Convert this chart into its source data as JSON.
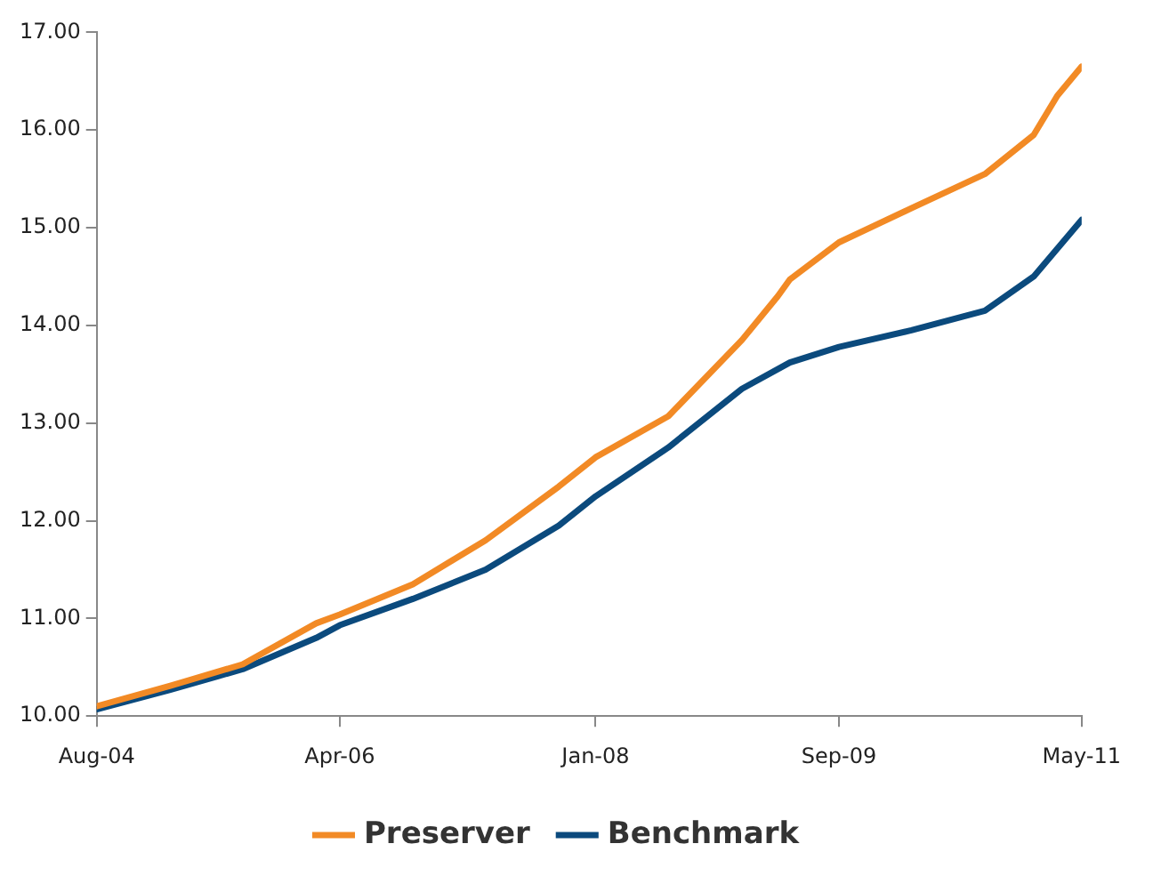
{
  "chart_data": {
    "type": "line",
    "legend": "bottom",
    "grid": false,
    "marker": "none",
    "line_style": "solid",
    "xlim": [
      "2004-08",
      "2011-05"
    ],
    "xticks": [
      {
        "value": "2004-08",
        "label": "Aug-04"
      },
      {
        "value": "2006-04",
        "label": "Apr-06"
      },
      {
        "value": "2008-01",
        "label": "Jan-08"
      },
      {
        "value": "2009-09",
        "label": "Sep-09"
      },
      {
        "value": "2011-05",
        "label": "May-11"
      }
    ],
    "ylim": [
      10,
      17
    ],
    "yticks": [
      {
        "value": 10,
        "label": "10.00"
      },
      {
        "value": 11,
        "label": "11.00"
      },
      {
        "value": 12,
        "label": "12.00"
      },
      {
        "value": 13,
        "label": "13.00"
      },
      {
        "value": 14,
        "label": "14.00"
      },
      {
        "value": 15,
        "label": "15.00"
      },
      {
        "value": 16,
        "label": "16.00"
      },
      {
        "value": 17,
        "label": "17.00"
      }
    ],
    "series": [
      {
        "name": "Preserver",
        "color": "#f28a25",
        "x": [
          "2004-08",
          "2005-02",
          "2005-08",
          "2006-02",
          "2006-04",
          "2006-10",
          "2007-04",
          "2007-10",
          "2008-01",
          "2008-07",
          "2009-01",
          "2009-04",
          "2009-05",
          "2009-09",
          "2010-03",
          "2010-09",
          "2011-01",
          "2011-03",
          "2011-05"
        ],
        "values": [
          10.1,
          10.31,
          10.53,
          10.95,
          11.04,
          11.35,
          11.8,
          12.35,
          12.65,
          13.07,
          13.85,
          14.3,
          14.47,
          14.85,
          15.2,
          15.55,
          15.95,
          16.35,
          16.65
        ]
      },
      {
        "name": "Benchmark",
        "color": "#0b4a7d",
        "x": [
          "2004-08",
          "2005-02",
          "2005-08",
          "2006-02",
          "2006-04",
          "2006-10",
          "2007-04",
          "2007-06",
          "2007-10",
          "2008-01",
          "2008-07",
          "2009-01",
          "2009-05",
          "2009-09",
          "2010-03",
          "2010-09",
          "2011-01",
          "2011-05"
        ],
        "values": [
          10.07,
          10.27,
          10.48,
          10.8,
          10.93,
          11.2,
          11.5,
          11.65,
          11.95,
          12.25,
          12.75,
          13.35,
          13.62,
          13.78,
          13.95,
          14.15,
          14.5,
          15.08
        ]
      }
    ]
  }
}
